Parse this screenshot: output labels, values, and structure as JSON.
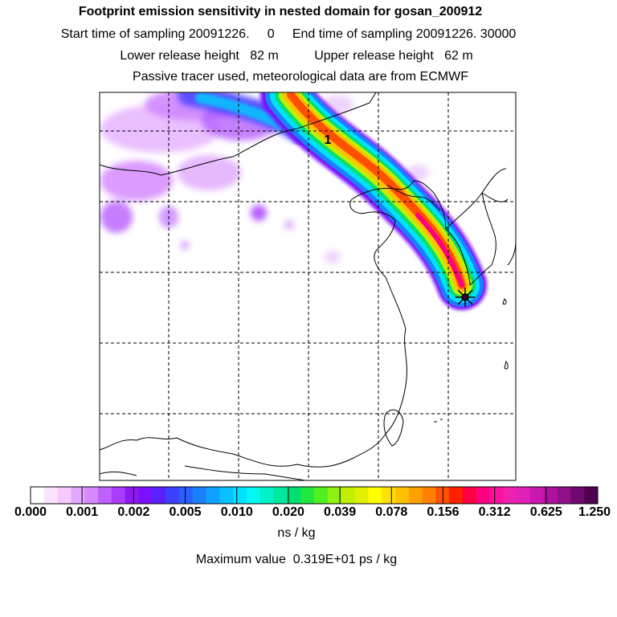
{
  "header": {
    "title": "Footprint emission sensitivity in nested domain for gosan_200912",
    "sampling_line": "Start time of sampling 20091226.     0     End time of sampling 20091226. 30000",
    "release_line": "Lower release height   82 m          Upper release height   62 m",
    "tracer_line": "Passive tracer used, meteorological data are from ECMWF"
  },
  "map": {
    "plume_label": "1",
    "receptor": "gosan",
    "receptor_marker": "star-marker"
  },
  "colorbar": {
    "tick_labels": [
      "0.000",
      "0.001",
      "0.002",
      "0.005",
      "0.010",
      "0.020",
      "0.039",
      "0.078",
      "0.156",
      "0.312",
      "0.625",
      "1.250"
    ],
    "colors": [
      "#ffffff",
      "#fbe3ff",
      "#f5c8ff",
      "#e6a8ff",
      "#d78aff",
      "#c060ff",
      "#a93cff",
      "#9018f0",
      "#7a10ff",
      "#5b20ff",
      "#3c40ff",
      "#2860ff",
      "#1a80ff",
      "#10a0ff",
      "#08c0ff",
      "#00e0ff",
      "#00f8f0",
      "#00f0c8",
      "#00e8a0",
      "#00e070",
      "#20e840",
      "#50f020",
      "#90f010",
      "#c0f000",
      "#e0f000",
      "#ffff00",
      "#ffe000",
      "#ffc000",
      "#ffa000",
      "#ff8000",
      "#ff5000",
      "#ff2000",
      "#ff0040",
      "#ff0080",
      "#ff10a0",
      "#f020b0",
      "#e020b8",
      "#c818b0",
      "#b010a0",
      "#901088",
      "#700870",
      "#500050"
    ],
    "units": "ns / kg"
  },
  "footer": {
    "max_value": "Maximum value  0.319E+01 ps / kg"
  }
}
